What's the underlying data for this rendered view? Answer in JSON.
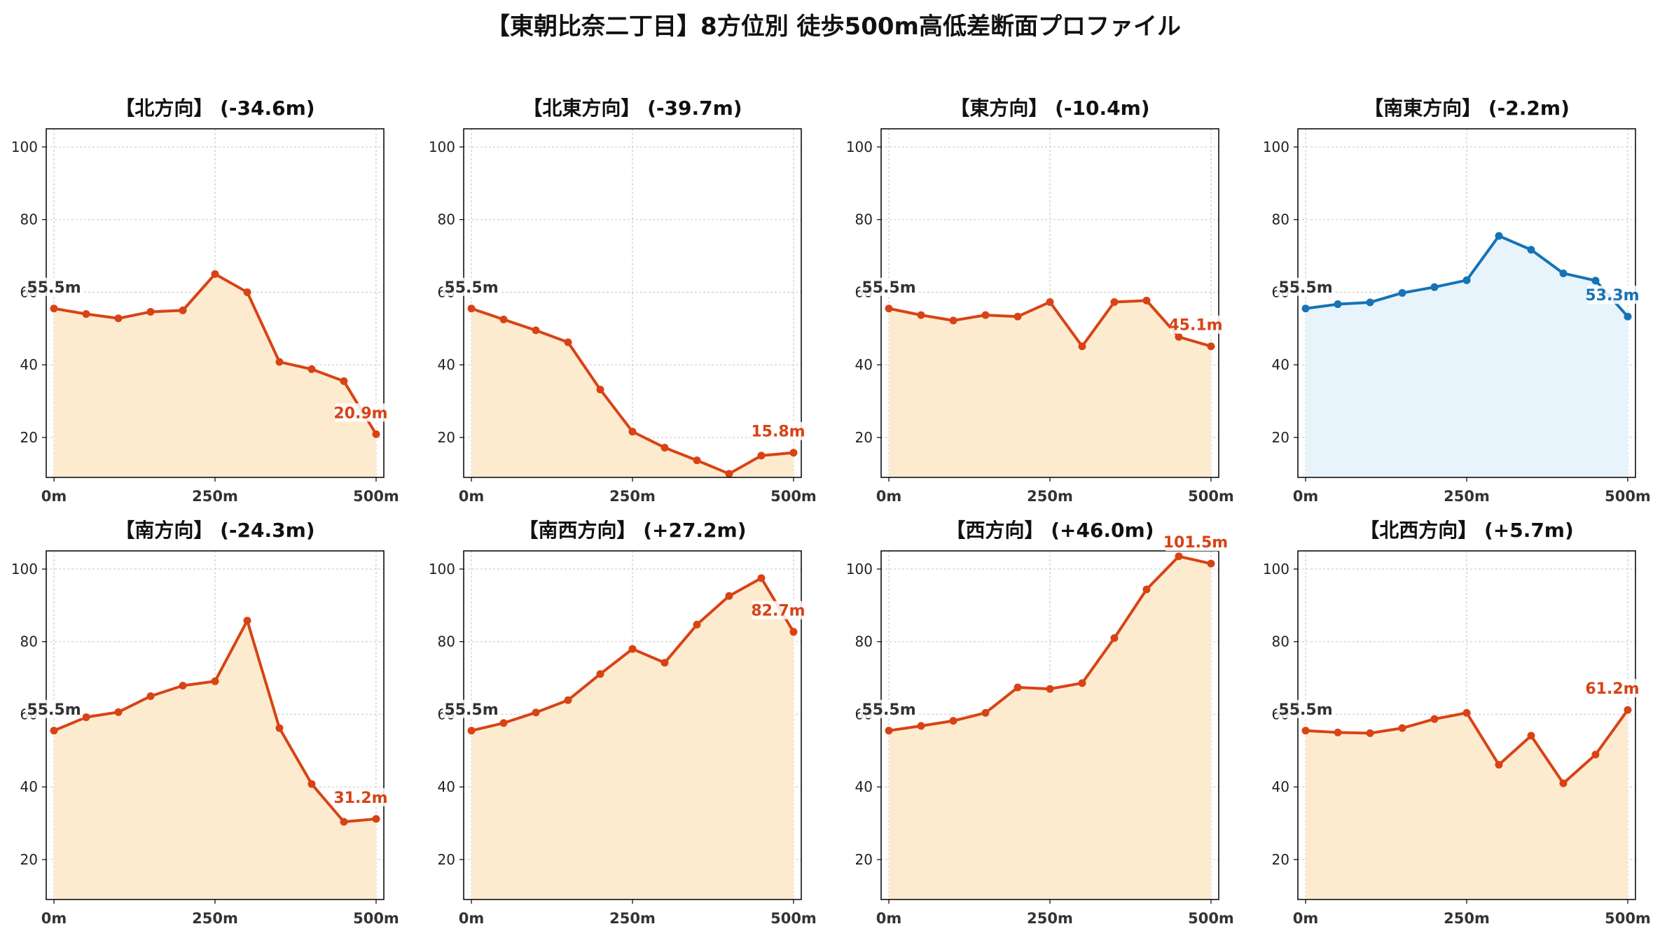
{
  "title": "【東朝比奈二丁目】8方位別 徒歩500m高低差断面プロファイル",
  "colors": {
    "down_line": "#d84315",
    "down_fill": "#fdebd0",
    "up_line": "#1673b5",
    "up_fill": "#e7f4fb",
    "start_label": "#333333"
  },
  "chart_data": [
    {
      "type": "area",
      "title": "【北方向】 (-34.6m)",
      "x": [
        0,
        50,
        100,
        150,
        200,
        250,
        300,
        350,
        400,
        450,
        500
      ],
      "y": [
        55.5,
        54.0,
        52.8,
        54.6,
        55.0,
        65.0,
        60.0,
        40.8,
        38.8,
        35.5,
        20.9
      ],
      "start_label": "55.5m",
      "end_label": "20.9m",
      "xticks": [
        "0m",
        "250m",
        "500m"
      ],
      "yticks": [
        20,
        40,
        60,
        80,
        100
      ],
      "ylim": [
        9,
        105
      ],
      "xlim": [
        -12,
        512
      ],
      "grid": true,
      "style": "down"
    },
    {
      "type": "area",
      "title": "【北東方向】 (-39.7m)",
      "x": [
        0,
        50,
        100,
        150,
        200,
        250,
        300,
        350,
        400,
        450,
        500
      ],
      "y": [
        55.5,
        52.5,
        49.5,
        46.2,
        33.2,
        21.6,
        17.2,
        13.7,
        10.0,
        15.0,
        15.8
      ],
      "start_label": "55.5m",
      "end_label": "15.8m",
      "xticks": [
        "0m",
        "250m",
        "500m"
      ],
      "yticks": [
        20,
        40,
        60,
        80,
        100
      ],
      "ylim": [
        9,
        105
      ],
      "xlim": [
        -12,
        512
      ],
      "grid": true,
      "style": "down"
    },
    {
      "type": "area",
      "title": "【東方向】 (-10.4m)",
      "x": [
        0,
        50,
        100,
        150,
        200,
        250,
        300,
        350,
        400,
        450,
        500
      ],
      "y": [
        55.5,
        53.7,
        52.2,
        53.7,
        53.3,
        57.3,
        45.1,
        57.3,
        57.7,
        47.7,
        45.1
      ],
      "start_label": "55.5m",
      "end_label": "45.1m",
      "xticks": [
        "0m",
        "250m",
        "500m"
      ],
      "yticks": [
        20,
        40,
        60,
        80,
        100
      ],
      "ylim": [
        9,
        105
      ],
      "xlim": [
        -12,
        512
      ],
      "grid": true,
      "style": "down"
    },
    {
      "type": "area",
      "title": "【南東方向】 (-2.2m)",
      "x": [
        0,
        50,
        100,
        150,
        200,
        250,
        300,
        350,
        400,
        450,
        500
      ],
      "y": [
        55.5,
        56.7,
        57.2,
        59.8,
        61.4,
        63.3,
        75.5,
        71.7,
        65.2,
        63.2,
        53.3
      ],
      "start_label": "55.5m",
      "end_label": "53.3m",
      "xticks": [
        "0m",
        "250m",
        "500m"
      ],
      "yticks": [
        20,
        40,
        60,
        80,
        100
      ],
      "ylim": [
        9,
        105
      ],
      "xlim": [
        -12,
        512
      ],
      "grid": true,
      "style": "up"
    },
    {
      "type": "area",
      "title": "【南方向】 (-24.3m)",
      "x": [
        0,
        50,
        100,
        150,
        200,
        250,
        300,
        350,
        400,
        450,
        500
      ],
      "y": [
        55.5,
        59.2,
        60.6,
        65.0,
        67.9,
        69.1,
        85.8,
        56.2,
        40.8,
        30.4,
        31.2
      ],
      "start_label": "55.5m",
      "end_label": "31.2m",
      "xticks": [
        "0m",
        "250m",
        "500m"
      ],
      "yticks": [
        20,
        40,
        60,
        80,
        100
      ],
      "ylim": [
        9,
        105
      ],
      "xlim": [
        -12,
        512
      ],
      "grid": true,
      "style": "down"
    },
    {
      "type": "area",
      "title": "【南西方向】 (+27.2m)",
      "x": [
        0,
        50,
        100,
        150,
        200,
        250,
        300,
        350,
        400,
        450,
        500
      ],
      "y": [
        55.5,
        57.6,
        60.5,
        63.9,
        71.1,
        78.0,
        74.2,
        84.7,
        92.6,
        97.5,
        82.7
      ],
      "start_label": "55.5m",
      "end_label": "82.7m",
      "xticks": [
        "0m",
        "250m",
        "500m"
      ],
      "yticks": [
        20,
        40,
        60,
        80,
        100
      ],
      "ylim": [
        9,
        105
      ],
      "xlim": [
        -12,
        512
      ],
      "grid": true,
      "style": "down"
    },
    {
      "type": "area",
      "title": "【西方向】 (+46.0m)",
      "x": [
        0,
        50,
        100,
        150,
        200,
        250,
        300,
        350,
        400,
        450,
        500
      ],
      "y": [
        55.5,
        56.8,
        58.2,
        60.4,
        67.4,
        67.0,
        68.6,
        81.0,
        94.4,
        103.5,
        101.5
      ],
      "start_label": "55.5m",
      "end_label": "101.5m",
      "xticks": [
        "0m",
        "250m",
        "500m"
      ],
      "yticks": [
        20,
        40,
        60,
        80,
        100
      ],
      "ylim": [
        9,
        105
      ],
      "xlim": [
        -12,
        512
      ],
      "grid": true,
      "style": "down"
    },
    {
      "type": "area",
      "title": "【北西方向】 (+5.7m)",
      "x": [
        0,
        50,
        100,
        150,
        200,
        250,
        300,
        350,
        400,
        450,
        500
      ],
      "y": [
        55.5,
        55.0,
        54.8,
        56.2,
        58.7,
        60.4,
        46.1,
        54.1,
        41.0,
        48.9,
        61.2
      ],
      "start_label": "55.5m",
      "end_label": "61.2m",
      "xticks": [
        "0m",
        "250m",
        "500m"
      ],
      "yticks": [
        20,
        40,
        60,
        80,
        100
      ],
      "ylim": [
        9,
        105
      ],
      "xlim": [
        -12,
        512
      ],
      "grid": true,
      "style": "down"
    }
  ]
}
